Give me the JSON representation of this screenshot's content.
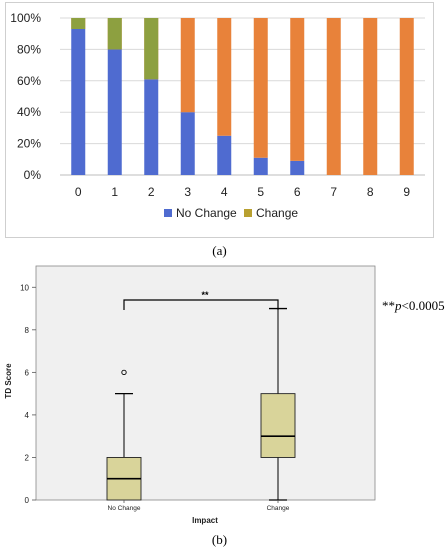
{
  "colors": {
    "no_change": "#4F6BD0",
    "change_bar": "#E8823A",
    "change_legend": "#B8A030",
    "top_green": "#8DA040",
    "box_fill": "#D9D49A",
    "plot_bg": "#F0F0F0"
  },
  "chart_data": [
    {
      "type": "bar",
      "stacked": true,
      "categories": [
        "0",
        "1",
        "2",
        "3",
        "4",
        "5",
        "6",
        "7",
        "8",
        "9"
      ],
      "series": [
        {
          "name": "No Change",
          "values": [
            0.93,
            0.8,
            0.61,
            0.4,
            0.25,
            0.11,
            0.09,
            0,
            0,
            0
          ]
        },
        {
          "name": "Change",
          "values": [
            0.07,
            0.2,
            0.39,
            0.6,
            0.75,
            0.89,
            0.91,
            1.0,
            1.0,
            1.0
          ]
        }
      ],
      "yticks": [
        "0%",
        "20%",
        "40%",
        "60%",
        "80%",
        "100%"
      ],
      "ylim": [
        0,
        1
      ],
      "grid": "horizontal",
      "legend": "bottom",
      "caption": "(a)"
    },
    {
      "type": "boxplot",
      "categories": [
        "No Change",
        "Change"
      ],
      "boxes": [
        {
          "name": "No Change",
          "min": 0,
          "q1": 0,
          "median": 1,
          "q3": 2,
          "max": 5,
          "outliers": [
            6
          ]
        },
        {
          "name": "Change",
          "min": 0,
          "q1": 2,
          "median": 3,
          "q3": 5,
          "max": 9,
          "outliers": []
        }
      ],
      "xlabel": "Impact",
      "ylabel": "TD Score",
      "yticks": [
        "0",
        "2",
        "4",
        "6",
        "8",
        "10"
      ],
      "ylim": [
        0,
        11
      ],
      "significance": "**",
      "p_note_prefix": "**",
      "p_note_var": "p",
      "p_note_rest": "<0.0005",
      "caption": "(b)"
    }
  ]
}
